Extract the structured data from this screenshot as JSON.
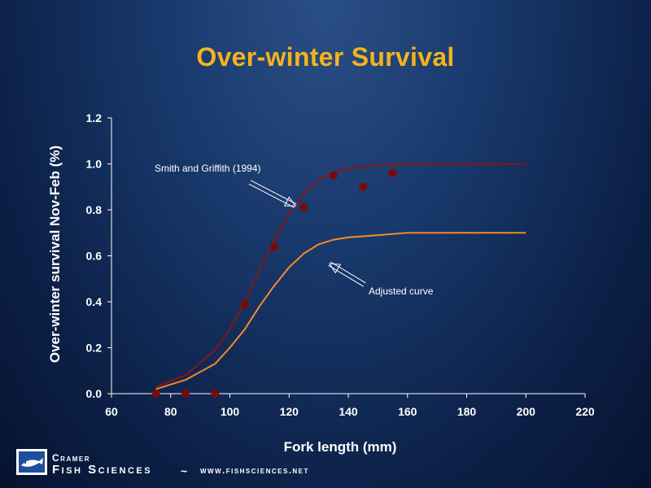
{
  "slide": {
    "title": "Over-winter Survival"
  },
  "chart_data": {
    "type": "scatter",
    "title": "Over-winter Survival",
    "xlabel": "Fork length (mm)",
    "ylabel": "Over-winter survival Nov-Feb (%)",
    "xlim": [
      60,
      220
    ],
    "ylim": [
      0,
      1.2
    ],
    "x_ticks": [
      "60",
      "80",
      "100",
      "120",
      "140",
      "160",
      "180",
      "200",
      "220"
    ],
    "y_ticks": [
      "0.0",
      "0.2",
      "0.4",
      "0.6",
      "0.8",
      "1.0",
      "1.2"
    ],
    "x_tick_values": [
      60,
      80,
      100,
      120,
      140,
      160,
      180,
      200,
      220
    ],
    "y_tick_values": [
      0,
      0.2,
      0.4,
      0.6,
      0.8,
      1.0,
      1.2
    ],
    "grid": false,
    "series": [
      {
        "type": "scatter",
        "color": "#7a0a0a",
        "points": [
          {
            "x": 75,
            "y": 0.0
          },
          {
            "x": 85,
            "y": 0.0
          },
          {
            "x": 95,
            "y": 0.0
          },
          {
            "x": 105,
            "y": 0.39
          },
          {
            "x": 115,
            "y": 0.64
          },
          {
            "x": 125,
            "y": 0.81
          },
          {
            "x": 135,
            "y": 0.95
          },
          {
            "x": 145,
            "y": 0.9
          },
          {
            "x": 155,
            "y": 0.96
          }
        ]
      },
      {
        "type": "line",
        "name": "Smith and Griffith (1994)",
        "color": "#8a1414",
        "x": [
          75,
          85,
          95,
          100,
          105,
          110,
          115,
          120,
          125,
          130,
          135,
          140,
          150,
          160,
          170,
          180,
          190,
          200
        ],
        "y": [
          0.03,
          0.08,
          0.19,
          0.28,
          0.4,
          0.54,
          0.67,
          0.78,
          0.87,
          0.93,
          0.96,
          0.98,
          0.995,
          1.0,
          1.0,
          1.0,
          1.0,
          1.0
        ]
      },
      {
        "type": "line",
        "name": "Adjusted curve",
        "color": "#f28c28",
        "x": [
          75,
          85,
          95,
          100,
          105,
          110,
          115,
          120,
          125,
          130,
          135,
          140,
          150,
          160,
          170,
          180,
          190,
          200
        ],
        "y": [
          0.02,
          0.06,
          0.13,
          0.2,
          0.28,
          0.38,
          0.47,
          0.55,
          0.61,
          0.65,
          0.67,
          0.68,
          0.69,
          0.7,
          0.7,
          0.7,
          0.7,
          0.7
        ]
      }
    ],
    "annotations": [
      {
        "text": "Smith and Griffith (1994)",
        "arrow_to": {
          "x": 123,
          "y": 0.81
        }
      },
      {
        "text": "Adjusted curve",
        "arrow_to": {
          "x": 132,
          "y": 0.58
        }
      }
    ]
  },
  "footer": {
    "brand_top": "Cramer",
    "brand": "Fish Sciences",
    "separator": "~",
    "url": "www.fishsciences.net",
    "logo_icon": "fish-logo-icon",
    "accent_color": "#f5b31b"
  }
}
